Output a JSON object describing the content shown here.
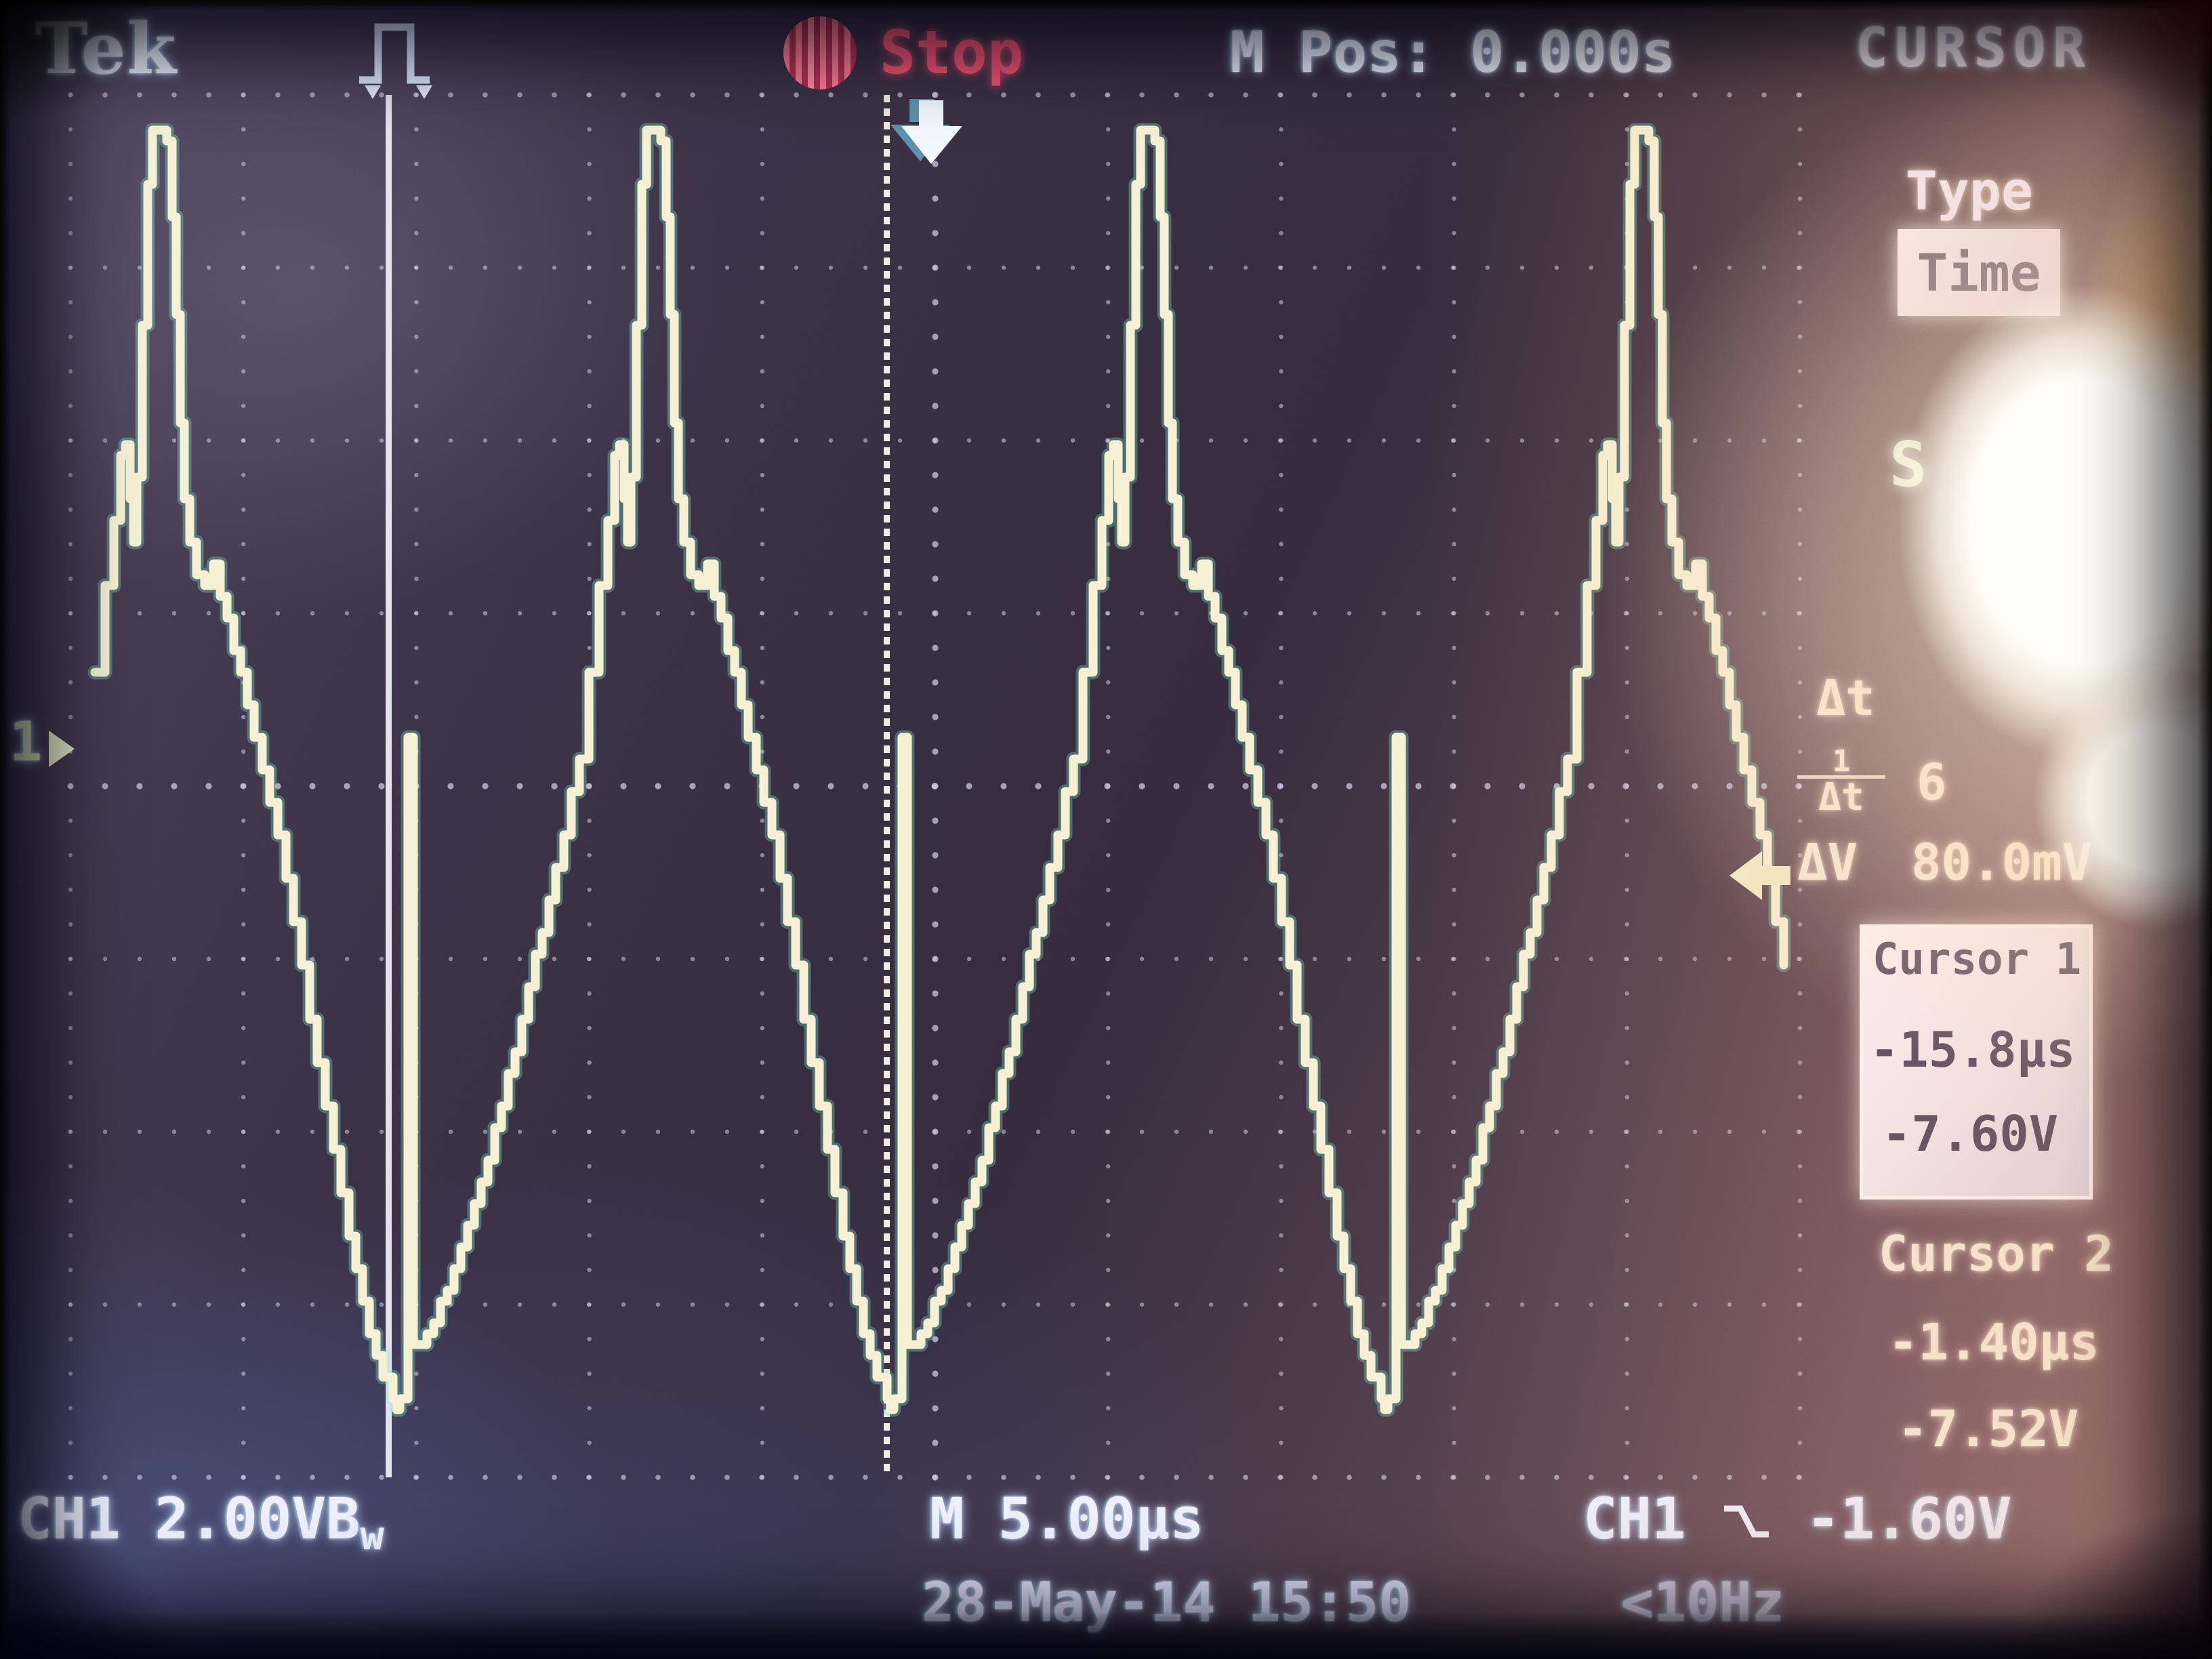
{
  "brand": "Tek",
  "top_bar": {
    "acq_status": "Stop",
    "m_pos": "M Pos: 0.000s",
    "trigger_mode_icon": "square-pulse-icon",
    "stop_icon": "red-striped-circle"
  },
  "menu": {
    "title": "CURSOR",
    "type_label": "Type",
    "type_value": "Time",
    "obscured_item_visible_text": "S",
    "readouts": {
      "dt_label": "Δt",
      "inv_dt_numer": "1",
      "inv_dt_denom": "Δt",
      "inv_dt_visible": "6",
      "dv_label": "ΔV",
      "dv_visible": "80.0mV"
    },
    "cursor1": {
      "title": "Cursor 1",
      "time": "-15.8μs",
      "voltage": "-7.60V"
    },
    "cursor2": {
      "title": "Cursor 2",
      "time": "-1.40μs",
      "voltage": "-7.52V"
    }
  },
  "bottom_bar": {
    "ch1_label": "CH1",
    "ch1_scale": "2.00V",
    "bw_b": "B",
    "bw_w": "w",
    "timebase": "M 5.00μs",
    "trig_source": "CH1",
    "trig_level": "-1.60V",
    "datetime": "28-May-14 15:50",
    "trig_freq": "<10Hz"
  },
  "markers": {
    "channel_number": "1"
  },
  "colors": {
    "stop_red": "#f2506e",
    "trace_cream": "#f6f1d3",
    "trace_fringe": "#7ce8c4",
    "grid_dot": "#d8d2ee",
    "cursor_line": "#f2f0fc",
    "text_white": "#eef0ff",
    "inverted_box_bg": "#f2eef8",
    "inverted_box_text": "#46405c"
  },
  "chart_data": {
    "type": "line",
    "title": "CH1 trace: ~69 kHz sine-like wave, tall narrow spike on each crest, notch and thin vertical glitch at each trough",
    "xlabel": "time (5.00 μs/div)",
    "ylabel": "CH1 (2.00 V/div)",
    "x_range_us": [
      -25,
      25
    ],
    "y_range_v": [
      -8.55,
      7.45
    ],
    "timebase_us_per_div": 5.0,
    "volts_per_div": 2.0,
    "divisions_x": 10,
    "divisions_y": 8,
    "period_us": 14.28,
    "trigger": {
      "source": "CH1",
      "slope": "falling",
      "level_v": -1.6,
      "position_s": 0.0
    },
    "cursors": {
      "cursor1": {
        "t_us": -15.8,
        "v": -7.6,
        "style": "solid"
      },
      "cursor2": {
        "t_us": -1.4,
        "v": -7.52,
        "style": "dotted"
      }
    },
    "series": [
      {
        "name": "CH1",
        "peak_times_us": [
          -22.53,
          -8.25,
          6.03,
          20.31
        ],
        "cycle_points_tv": [
          [
            -1.763,
            0.706
          ],
          [
            -1.47,
            1.725
          ],
          [
            -1.215,
            2.588
          ],
          [
            -1.019,
            3.216
          ],
          [
            -0.882,
            3.451
          ],
          [
            -0.745,
            2.824
          ],
          [
            -0.647,
            2.275
          ],
          [
            -0.549,
            3.059
          ],
          [
            -0.392,
            4.784
          ],
          [
            -0.235,
            6.353
          ],
          [
            -0.098,
            7.02
          ],
          [
            0.0,
            7.098
          ],
          [
            0.157,
            7.059
          ],
          [
            0.314,
            6.941
          ],
          [
            0.47,
            6.039
          ],
          [
            0.588,
            4.863
          ],
          [
            0.705,
            3.686
          ],
          [
            0.823,
            2.745
          ],
          [
            0.98,
            2.275
          ],
          [
            1.176,
            1.882
          ],
          [
            1.411,
            1.725
          ],
          [
            1.665,
            1.961
          ],
          [
            1.861,
            1.647
          ],
          [
            2.253,
            1.02
          ],
          [
            2.841,
            0.078
          ],
          [
            3.527,
            -1.176
          ],
          [
            4.213,
            -2.667
          ],
          [
            4.898,
            -4.235
          ],
          [
            5.584,
            -5.725
          ],
          [
            6.172,
            -6.824
          ],
          [
            6.564,
            -7.373
          ],
          [
            6.858,
            -7.624
          ],
          [
            6.956,
            -7.804
          ],
          [
            7.054,
            -7.624
          ],
          [
            7.25,
            -7.608
          ],
          [
            7.289,
            0.039
          ],
          [
            7.367,
            0.039
          ],
          [
            7.446,
            -7.059
          ],
          [
            7.837,
            -6.941
          ],
          [
            8.425,
            -6.353
          ],
          [
            9.209,
            -5.412
          ],
          [
            9.993,
            -4.235
          ],
          [
            10.776,
            -2.902
          ],
          [
            11.56,
            -1.49
          ],
          [
            12.246,
            -0.235
          ]
        ]
      }
    ],
    "grid": "dotted graticule, dots every 0.2 div, denser ticks on center axes",
    "legend_position": "none"
  }
}
